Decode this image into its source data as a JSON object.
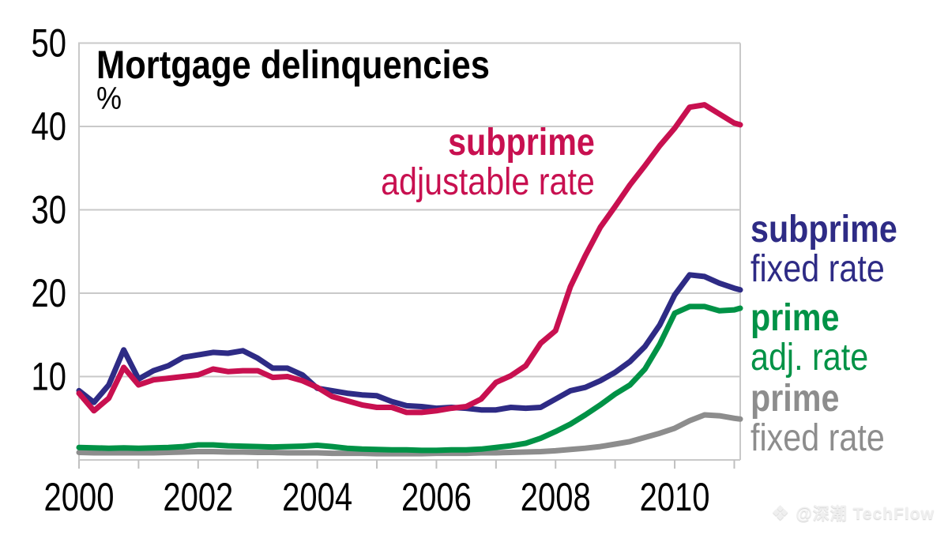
{
  "title": {
    "text": "Mortgage delinquencies",
    "unit": "%"
  },
  "watermark": {
    "icon": "techflow-diamond-logo",
    "text": "@深潮 TechFlow"
  },
  "colors": {
    "subprime_adjustable": "#C81050",
    "subprime_fixed": "#2E2B85",
    "prime_adjustable": "#009246",
    "prime_fixed": "#8D8D8D",
    "grid": "#C9C9C9",
    "tick": "#C0C0C0",
    "text": "#000000"
  },
  "chart_data": {
    "type": "line",
    "title": "Mortgage delinquencies",
    "ylabel": "%",
    "xlabel": "",
    "xlim": [
      2000,
      2011.1
    ],
    "ylim": [
      0,
      50
    ],
    "yticks": [
      10,
      20,
      30,
      40,
      50
    ],
    "xticks": [
      2000,
      2002,
      2004,
      2006,
      2008,
      2010
    ],
    "xticks_minor": [
      2000,
      2001,
      2002,
      2003,
      2004,
      2005,
      2006,
      2007,
      2008,
      2009,
      2010,
      2011
    ],
    "grid": "horizontal",
    "legend_position": "inline-labels",
    "x": [
      2000,
      2000.25,
      2000.5,
      2000.75,
      2001,
      2001.25,
      2001.5,
      2001.75,
      2002,
      2002.25,
      2002.5,
      2002.75,
      2003,
      2003.25,
      2003.5,
      2003.75,
      2004,
      2004.25,
      2004.5,
      2004.75,
      2005,
      2005.25,
      2005.5,
      2005.75,
      2006,
      2006.25,
      2006.5,
      2006.75,
      2007,
      2007.25,
      2007.5,
      2007.75,
      2008,
      2008.25,
      2008.5,
      2008.75,
      2009,
      2009.25,
      2009.5,
      2009.75,
      2010,
      2010.25,
      2010.5,
      2010.75,
      2011,
      2011.1
    ],
    "series": [
      {
        "key": "subprime-adjustable-rate",
        "label_bold": "subprime",
        "label_rest": "adjustable rate",
        "color": "#C81050",
        "values": [
          8.0,
          5.9,
          7.4,
          11.1,
          9.0,
          9.6,
          9.8,
          10.0,
          10.2,
          10.9,
          10.6,
          10.7,
          10.7,
          9.9,
          10.0,
          9.5,
          8.7,
          7.6,
          7.1,
          6.6,
          6.3,
          6.3,
          5.7,
          5.7,
          5.9,
          6.2,
          6.4,
          7.3,
          9.3,
          10.1,
          11.3,
          14.0,
          15.5,
          20.8,
          24.5,
          27.9,
          30.4,
          33.0,
          35.3,
          37.7,
          39.8,
          42.3,
          42.6,
          41.5,
          40.4,
          40.2
        ]
      },
      {
        "key": "subprime-fixed-rate",
        "label_bold": "subprime",
        "label_rest": "fixed rate",
        "color": "#2E2B85",
        "values": [
          8.3,
          6.9,
          9.0,
          13.2,
          9.7,
          10.7,
          11.3,
          12.3,
          12.6,
          12.9,
          12.8,
          13.1,
          12.2,
          11.0,
          11.0,
          10.2,
          8.6,
          8.3,
          8.0,
          7.8,
          7.7,
          7.0,
          6.5,
          6.4,
          6.2,
          6.3,
          6.2,
          6.0,
          6.0,
          6.3,
          6.2,
          6.3,
          7.3,
          8.3,
          8.7,
          9.5,
          10.5,
          11.8,
          13.6,
          16.2,
          19.8,
          22.2,
          22.0,
          21.2,
          20.6,
          20.4
        ]
      },
      {
        "key": "prime-adjustable-rate",
        "label_bold": "prime",
        "label_rest": "adj. rate",
        "color": "#009246",
        "values": [
          1.5,
          1.45,
          1.4,
          1.45,
          1.4,
          1.45,
          1.5,
          1.6,
          1.8,
          1.8,
          1.7,
          1.65,
          1.6,
          1.55,
          1.6,
          1.65,
          1.75,
          1.6,
          1.4,
          1.3,
          1.25,
          1.2,
          1.2,
          1.15,
          1.15,
          1.2,
          1.2,
          1.3,
          1.5,
          1.7,
          2.0,
          2.6,
          3.4,
          4.3,
          5.4,
          6.6,
          7.9,
          9.0,
          10.9,
          13.9,
          17.6,
          18.4,
          18.4,
          17.9,
          18.0,
          18.2
        ]
      },
      {
        "key": "prime-fixed-rate",
        "label_bold": "prime",
        "label_rest": "fixed rate",
        "color": "#8D8D8D",
        "values": [
          0.9,
          0.85,
          0.85,
          0.85,
          0.85,
          0.85,
          0.9,
          0.95,
          1.0,
          1.0,
          0.95,
          0.95,
          0.9,
          0.9,
          0.85,
          0.85,
          0.85,
          0.8,
          0.8,
          0.8,
          0.75,
          0.75,
          0.75,
          0.75,
          0.8,
          0.8,
          0.8,
          0.85,
          0.85,
          0.9,
          0.95,
          1.0,
          1.1,
          1.25,
          1.4,
          1.6,
          1.9,
          2.2,
          2.7,
          3.2,
          3.8,
          4.7,
          5.4,
          5.3,
          5.0,
          4.9
        ]
      }
    ]
  }
}
